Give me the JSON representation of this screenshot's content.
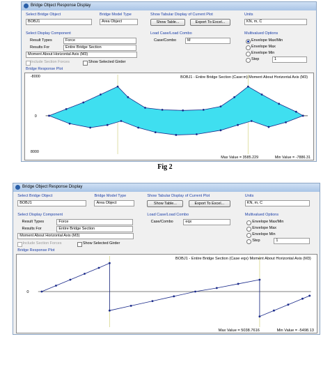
{
  "caption": "Fig 2",
  "windows": [
    {
      "title": "Bridge Object Response Display",
      "bridge_object_label": "Select Bridge Object",
      "bridge_object": "BOBJ1",
      "model_type_label": "Bridge Model Type",
      "model_type": "Area Object",
      "tabular_label": "Show Tabular Display of Current Plot",
      "show_table": "Show Table...",
      "export": "Export To Excel...",
      "units_label": "Units",
      "units": "KN, m, C",
      "component_label": "Select Display Component",
      "result_types_label": "Result Types",
      "result_types": "Force",
      "results_for_label": "Results For",
      "results_for": "Entire Bridge Section",
      "component": "Moment About Horizontal Axis (M3)",
      "include_section_forces": "Include Section Forces",
      "show_selected_girder": "Show Selected Girder",
      "load_case_label": "Load Case/Load Combo",
      "case_combo_label": "Case/Combo",
      "case_combo": "M",
      "multivalued_label": "Multivalued Options",
      "options": [
        "Envelope Max/Min",
        "Envelope Max",
        "Envelope Min",
        "Step"
      ],
      "step": "1",
      "plot_label": "Bridge Response Plot",
      "y_top": "-8000",
      "y_mid": "0",
      "y_bottom": "8000",
      "plot_title": "BOBJ1 - Entire Bridge Section (Case:m) Moment About Horizontal Axis (M3)",
      "max_value": "Max Value = 3585.229",
      "min_value": "Min Value = -7886.31"
    },
    {
      "title": "Bridge Object Response Display",
      "bridge_object_label": "Select Bridge Object",
      "bridge_object": "BOBJ1",
      "model_type_label": "Bridge Model Type",
      "model_type": "Area Object",
      "tabular_label": "Show Tabular Display of Current Plot",
      "show_table": "Show Table...",
      "export": "Export To Excel...",
      "units_label": "Units",
      "units": "KN, m, C",
      "component_label": "Select Display Component",
      "result_types_label": "Result Types",
      "result_types": "Force",
      "results_for_label": "Results For",
      "results_for": "Entire Bridge Section",
      "component": "Moment About Horizontal Axis (M3)",
      "include_section_forces": "Include Section Forces",
      "show_selected_girder": "Show Selected Girder",
      "load_case_label": "Load Case/Load Combo",
      "case_combo_label": "Case/Combo",
      "case_combo": "eqx",
      "multivalued_label": "Multivalued Options",
      "options": [
        "Envelope Max/Min",
        "Envelope Max",
        "Envelope Min",
        "Step"
      ],
      "step": "1",
      "plot_label": "Bridge Response Plot",
      "y_mid": "0",
      "plot_title": "BOBJ1 - Entire Bridge Section (Case eqx) Moment About Horizontal Axis (M3)",
      "max_value": "Max Value = 5038.7616",
      "min_value": "Min Value = -5498.13"
    }
  ]
}
